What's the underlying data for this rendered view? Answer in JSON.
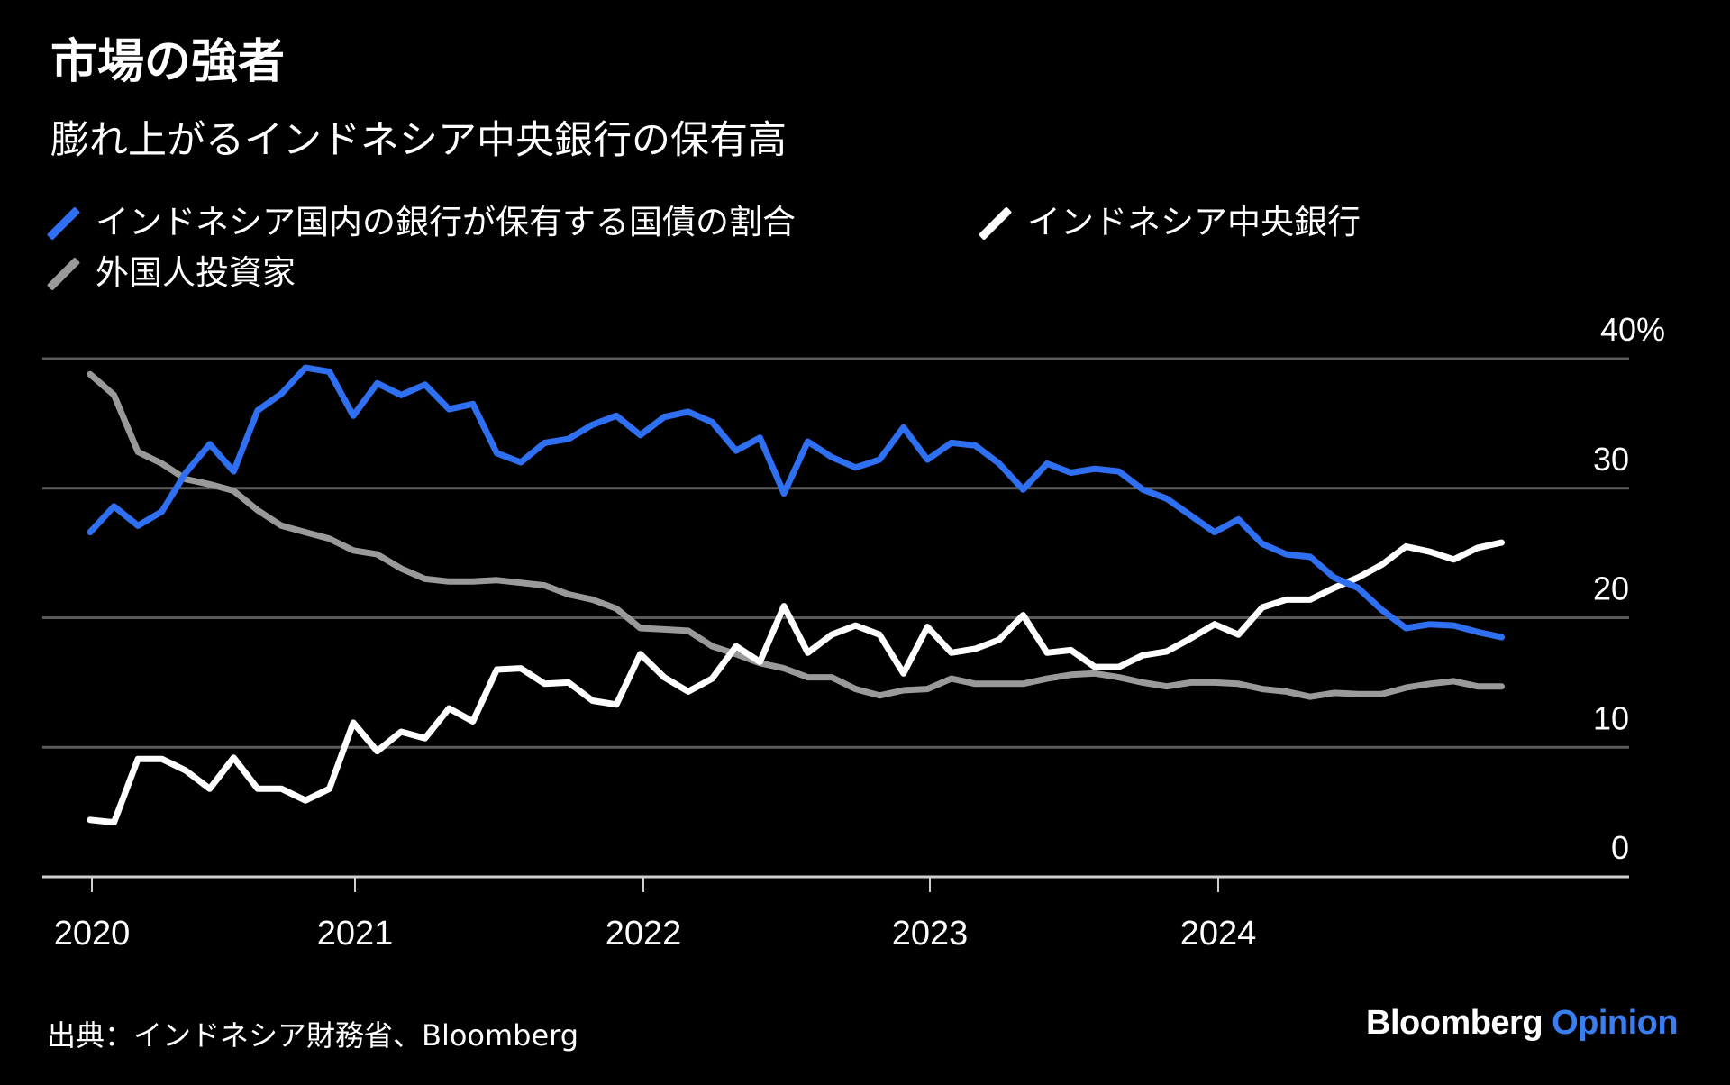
{
  "header": {
    "title": "市場の強者",
    "subtitle": "膨れ上がるインドネシア中央銀行の保有高"
  },
  "legend": [
    {
      "label": "インドネシア国内の銀行が保有する国債の割合",
      "color": "#2f6ff2"
    },
    {
      "label": "インドネシア中央銀行",
      "color": "#ffffff"
    },
    {
      "label": "外国人投資家",
      "color": "#9a9a9a"
    }
  ],
  "footer": {
    "source": "出典：インドネシア財務省、Bloomberg",
    "logo_brand": "Bloomberg",
    "logo_section": "Opinion",
    "logo_section_color": "#3a7ff2"
  },
  "chart_data": {
    "type": "line",
    "title": "市場の強者",
    "subtitle": "膨れ上がるインドネシア中央銀行の保有高",
    "xlabel": "",
    "ylabel": "",
    "x_start": "2020-01",
    "x_frequency": "monthly",
    "x_ticks": [
      "2020",
      "2021",
      "2022",
      "2023",
      "2024"
    ],
    "y_ticks": [
      "0",
      "10",
      "20",
      "30",
      "40%"
    ],
    "y_tick_values": [
      0,
      10,
      20,
      30,
      40
    ],
    "ylim": [
      0,
      40
    ],
    "grid": true,
    "legend_position": "top-left",
    "series": [
      {
        "name": "インドネシア国内の銀行が保有する国債の割合",
        "color": "#2f6ff2",
        "values": [
          26.6,
          28.6,
          27.1,
          28.2,
          31.2,
          33.4,
          31.3,
          36.0,
          37.3,
          39.3,
          39.0,
          35.6,
          38.1,
          37.2,
          38.0,
          36.1,
          36.5,
          32.7,
          32.0,
          33.5,
          33.8,
          34.9,
          35.6,
          34.1,
          35.5,
          35.9,
          35.1,
          32.9,
          33.9,
          29.6,
          33.6,
          32.4,
          31.6,
          32.2,
          34.7,
          32.2,
          33.5,
          33.3,
          31.9,
          29.9,
          31.9,
          31.2,
          31.5,
          31.3,
          29.9,
          29.2,
          27.9,
          26.6,
          27.6,
          25.7,
          24.9,
          24.7,
          23.1,
          22.3,
          20.6,
          19.2,
          19.5,
          19.4,
          18.9,
          18.5
        ]
      },
      {
        "name": "インドネシア中央銀行",
        "color": "#ffffff",
        "values": [
          4.4,
          4.2,
          9.1,
          9.1,
          8.2,
          6.8,
          9.2,
          6.8,
          6.8,
          5.9,
          6.8,
          11.9,
          9.7,
          11.2,
          10.7,
          13.0,
          12.0,
          16.0,
          16.1,
          14.9,
          15.0,
          13.6,
          13.3,
          17.2,
          15.4,
          14.3,
          15.3,
          17.8,
          16.6,
          20.9,
          17.3,
          18.7,
          19.4,
          18.7,
          15.7,
          19.3,
          17.3,
          17.6,
          18.3,
          20.2,
          17.3,
          17.5,
          16.2,
          16.2,
          17.1,
          17.4,
          18.4,
          19.5,
          18.7,
          20.8,
          21.4,
          21.4,
          22.3,
          23.1,
          24.1,
          25.5,
          25.1,
          24.5,
          25.4,
          25.8
        ]
      },
      {
        "name": "外国人投資家",
        "color": "#9a9a9a",
        "values": [
          38.8,
          37.2,
          32.8,
          31.9,
          30.7,
          30.3,
          29.8,
          28.3,
          27.1,
          26.6,
          26.1,
          25.2,
          24.9,
          23.8,
          23.0,
          22.8,
          22.8,
          22.9,
          22.7,
          22.5,
          21.8,
          21.4,
          20.7,
          19.2,
          19.1,
          19.0,
          17.8,
          17.2,
          16.5,
          16.1,
          15.4,
          15.4,
          14.5,
          14.0,
          14.4,
          14.5,
          15.3,
          14.9,
          14.9,
          14.9,
          15.3,
          15.6,
          15.7,
          15.4,
          15.0,
          14.7,
          15.0,
          15.0,
          14.9,
          14.5,
          14.3,
          13.9,
          14.2,
          14.1,
          14.1,
          14.6,
          14.9,
          15.1,
          14.7,
          14.7
        ]
      }
    ]
  }
}
